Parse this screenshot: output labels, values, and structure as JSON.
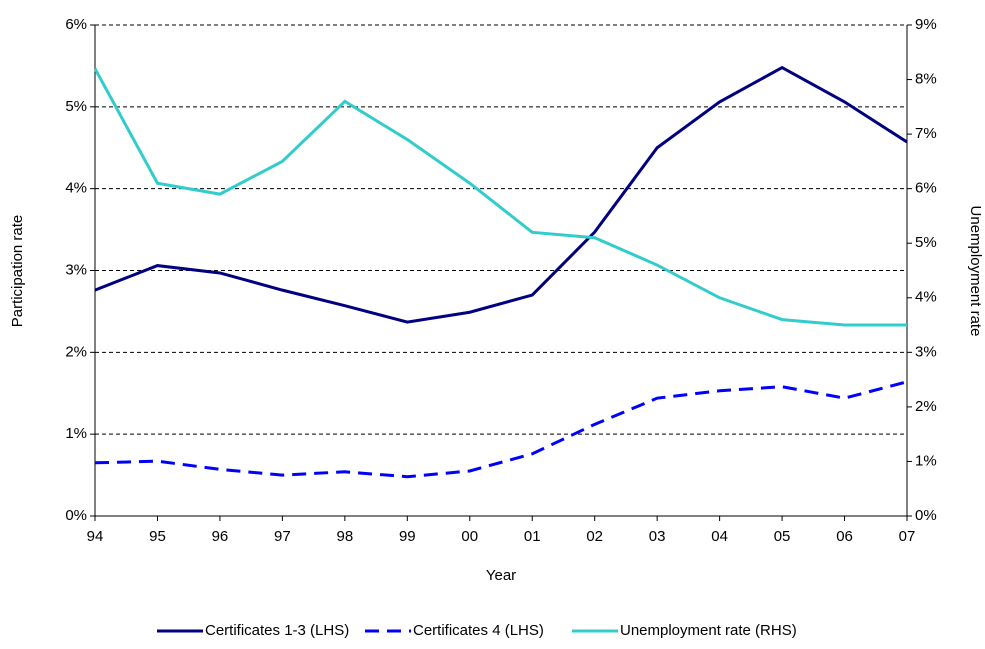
{
  "chart_data": {
    "type": "line",
    "categories": [
      "94",
      "95",
      "96",
      "97",
      "98",
      "99",
      "00",
      "01",
      "02",
      "03",
      "04",
      "05",
      "06",
      "07"
    ],
    "x_label": "Year",
    "y_label": "Participation rate",
    "y2_label": "Unemployment rate",
    "series": [
      {
        "name": "Certificates 1-3 (LHS)",
        "color": "#000080",
        "dash": false,
        "values": [
          2.76,
          3.06,
          2.97,
          2.76,
          2.57,
          2.37,
          2.49,
          2.7,
          3.47,
          4.5,
          5.06,
          5.48,
          5.06,
          4.57
        ]
      },
      {
        "name": "Certificates 4 (LHS)",
        "color": "#0000ff",
        "dash": true,
        "values": [
          0.65,
          0.67,
          0.57,
          0.5,
          0.54,
          0.48,
          0.55,
          0.76,
          1.12,
          1.44,
          1.53,
          1.58,
          1.44,
          1.64
        ]
      },
      {
        "name": "Unemployment rate (RHS)",
        "color": "#33cccc",
        "dash": false,
        "axis": "y2",
        "values": [
          8.2,
          6.1,
          5.9,
          6.5,
          7.6,
          6.9,
          6.1,
          5.2,
          5.1,
          4.6,
          4.0,
          3.6,
          3.5,
          3.5
        ]
      }
    ],
    "ylim": [
      0,
      6
    ],
    "yticks": [
      {
        "value": 0,
        "label": "0%"
      },
      {
        "value": 1,
        "label": "1%"
      },
      {
        "value": 2,
        "label": "2%"
      },
      {
        "value": 3,
        "label": "3%"
      },
      {
        "value": 4,
        "label": "4%"
      },
      {
        "value": 5,
        "label": "5%"
      },
      {
        "value": 6,
        "label": "6%"
      }
    ],
    "y2lim": [
      0,
      9
    ],
    "y2ticks": [
      {
        "value": 0,
        "label": "0%"
      },
      {
        "value": 1,
        "label": "1%"
      },
      {
        "value": 2,
        "label": "2%"
      },
      {
        "value": 3,
        "label": "3%"
      },
      {
        "value": 4,
        "label": "4%"
      },
      {
        "value": 5,
        "label": "5%"
      },
      {
        "value": 6,
        "label": "6%"
      },
      {
        "value": 7,
        "label": "7%"
      },
      {
        "value": 8,
        "label": "8%"
      },
      {
        "value": 9,
        "label": "9%"
      }
    ],
    "grid": true,
    "legend": "bottom"
  }
}
